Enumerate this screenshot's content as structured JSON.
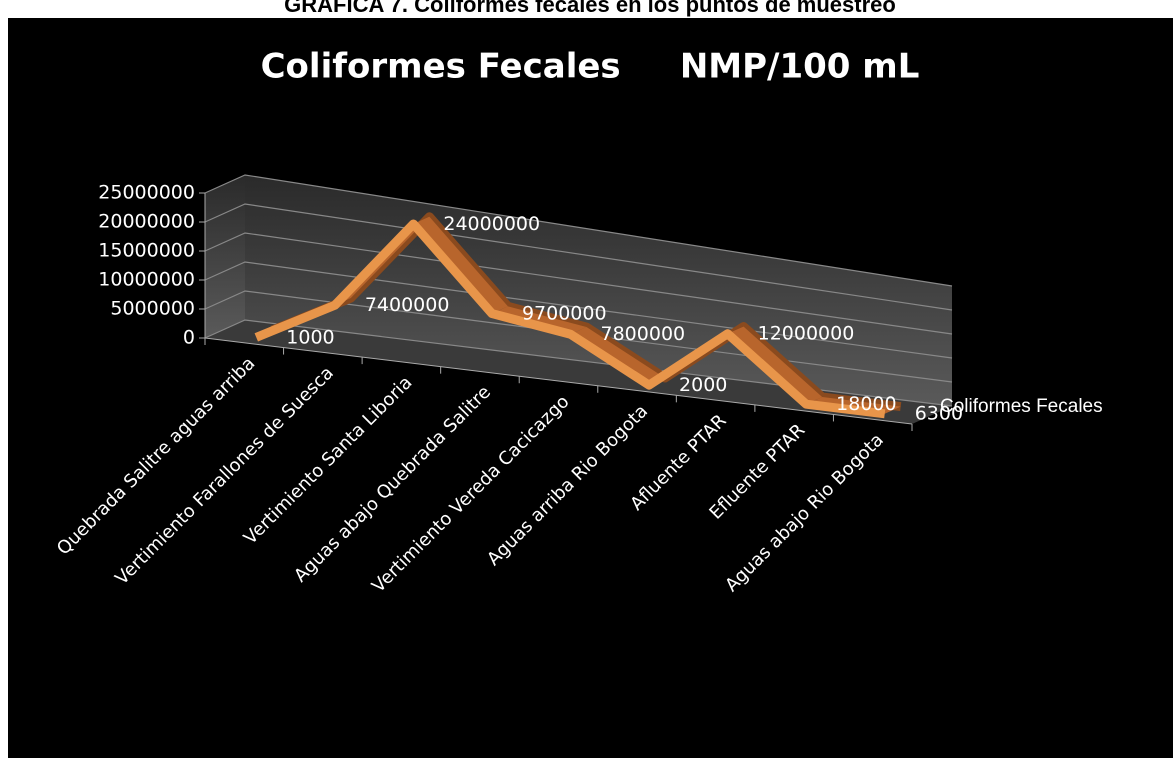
{
  "caption": "GRÁFICA 7. Coliformes fecales en los puntos de muestreo",
  "chart_data": {
    "type": "line3d",
    "title": "Coliformes Fecales     NMP/100 mL",
    "categories": [
      "Quebrada Salitre aguas arriba",
      "Vertimiento Farallones de Suesca",
      "Vertimiento Santa Liboria",
      "Aguas abajo Quebrada Salitre",
      "Vertimiento Vereda Cacicazgo",
      "Aguas arriba Rio Bogota",
      "Afluente PTAR",
      "Efluente PTAR",
      "Aguas abajo Rio Bogota"
    ],
    "series": [
      {
        "name": "Coliformes Fecales",
        "color": "#e8954a",
        "values": [
          1000,
          7400000,
          24000000,
          9700000,
          7800000,
          2000,
          12000000,
          18000,
          6300
        ]
      }
    ],
    "ylim": [
      0,
      25000000
    ],
    "yticks": [
      0,
      5000000,
      10000000,
      15000000,
      20000000,
      25000000
    ],
    "grid": true
  }
}
